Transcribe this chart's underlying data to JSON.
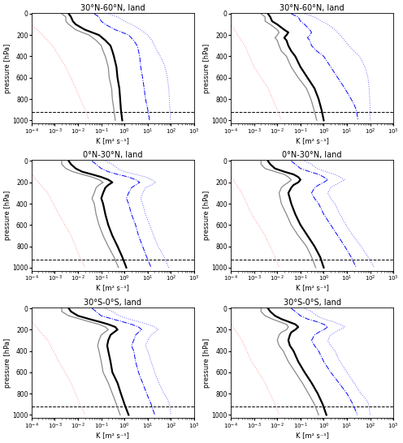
{
  "titles": [
    [
      "30°N-60°N, land",
      "30°N-60°N, land"
    ],
    [
      "0°N-30°N, land",
      "0°N-30°N, land"
    ],
    [
      "30°S-0°S, land",
      "30°S-0°S, land"
    ]
  ],
  "xlabel": "K [m² s⁻¹]",
  "ylabel": "pressure [hPa]",
  "xlim_log": [
    -4,
    3
  ],
  "ylim": [
    1030,
    -10
  ],
  "yticks": [
    0,
    200,
    400,
    600,
    800,
    1000
  ],
  "dashed_pressure": 925,
  "background": "#ffffff",
  "figsize": [
    4.96,
    5.46
  ],
  "dpi": 100,
  "title_fontsize": 7,
  "label_fontsize": 6,
  "tick_fontsize": 5
}
